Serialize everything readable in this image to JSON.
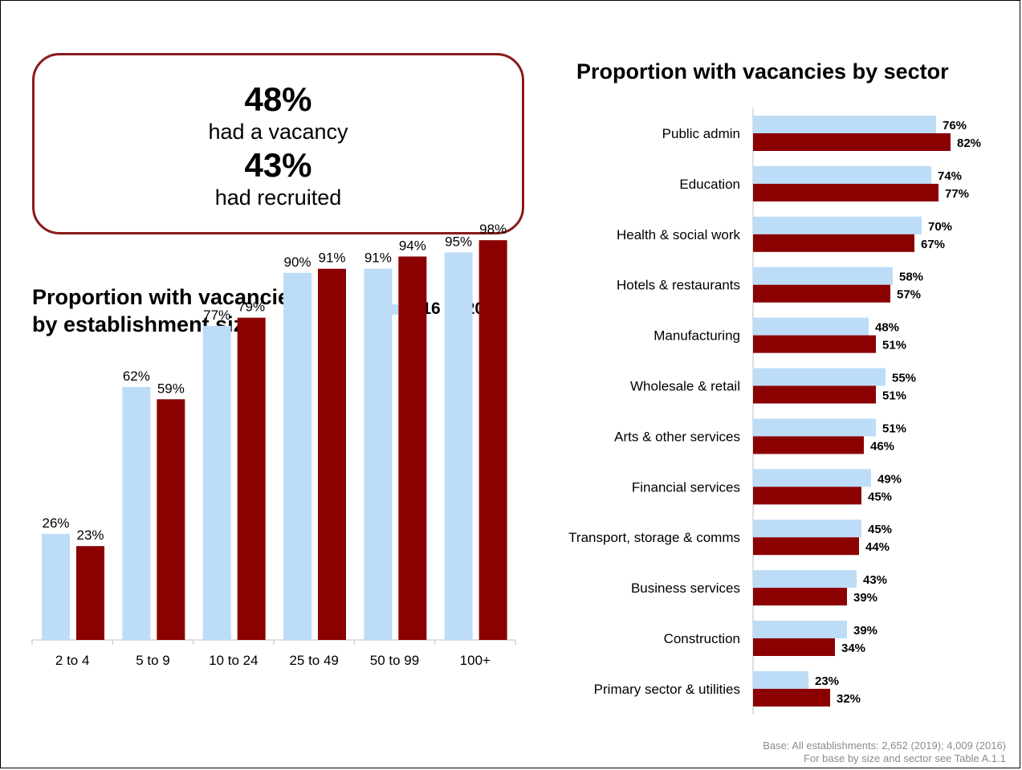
{
  "colors": {
    "series_2016": "#BDDCF8",
    "series_2019": "#8B0000",
    "box_border": "#8B1A1A",
    "axis": "#bfbfbf",
    "note": "#8c8c8c"
  },
  "stats": {
    "vacancy_value": "48%",
    "vacancy_label": "had a vacancy",
    "recruited_value": "43%",
    "recruited_label": "had recruited"
  },
  "legend": {
    "items": [
      "2016",
      "2019"
    ]
  },
  "base_note": {
    "line1": "Base: All establishments: 2,652 (2019); 4,009 (2016)",
    "line2": "For base by size and sector see Table A.1.1"
  },
  "chart_data": [
    {
      "type": "bar",
      "title": "Proportion with vacancies by establishment size",
      "title_line1": "Proportion with vacancies",
      "title_line2": "by establishment size",
      "categories": [
        "2 to 4",
        "5 to 9",
        "10 to 24",
        "25 to 49",
        "50 to 99",
        "100+"
      ],
      "series": [
        {
          "name": "2016",
          "values": [
            26,
            62,
            77,
            90,
            91,
            95
          ],
          "labels": [
            "26%",
            "62%",
            "77%",
            "90%",
            "91%",
            "95%"
          ]
        },
        {
          "name": "2019",
          "values": [
            23,
            59,
            79,
            91,
            94,
            98
          ],
          "labels": [
            "23%",
            "59%",
            "79%",
            "91%",
            "94%",
            "98%"
          ]
        }
      ],
      "ylim": [
        0,
        100
      ],
      "legend_position": "top-right",
      "grid": false
    },
    {
      "type": "bar",
      "orientation": "horizontal",
      "title": "Proportion with vacancies by sector",
      "categories": [
        "Public admin",
        "Education",
        "Health & social work",
        "Hotels & restaurants",
        "Manufacturing",
        "Wholesale & retail",
        "Arts & other services",
        "Financial services",
        "Transport, storage & comms",
        "Business services",
        "Construction",
        "Primary sector & utilities"
      ],
      "series": [
        {
          "name": "2016",
          "values": [
            76,
            74,
            70,
            58,
            48,
            55,
            51,
            49,
            45,
            43,
            39,
            23
          ],
          "labels": [
            "76%",
            "74%",
            "70%",
            "58%",
            "48%",
            "55%",
            "51%",
            "49%",
            "45%",
            "43%",
            "39%",
            "23%"
          ]
        },
        {
          "name": "2019",
          "values": [
            82,
            77,
            67,
            57,
            51,
            51,
            46,
            45,
            44,
            39,
            34,
            32
          ],
          "labels": [
            "82%",
            "77%",
            "67%",
            "57%",
            "51%",
            "51%",
            "46%",
            "45%",
            "44%",
            "39%",
            "34%",
            "32%"
          ]
        }
      ],
      "xlim": [
        0,
        100
      ],
      "grid": false
    }
  ]
}
